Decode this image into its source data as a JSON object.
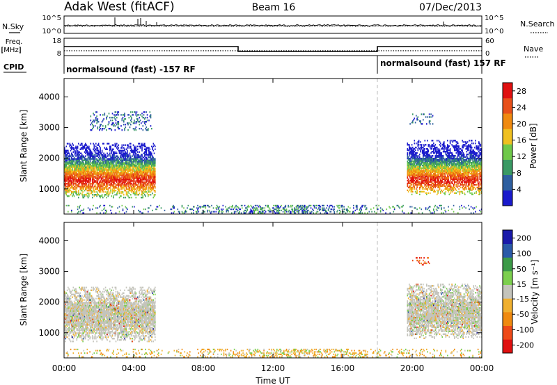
{
  "header": {
    "site": "Adak West (fitACF)",
    "beam": "Beam 16",
    "date": "07/Dec/2013"
  },
  "noise_panel": {
    "left_label": "N.Sky",
    "right_label": "N.Search",
    "left_ticks": [
      "10^5",
      "10^0"
    ],
    "right_ticks": [
      "10^5",
      "10^0"
    ]
  },
  "freq_panel": {
    "left_label_line1": "Freq.",
    "left_label_line2": "[MHz]",
    "left_ticks": [
      "18",
      "8"
    ],
    "right_label": "Nave",
    "right_ticks": [
      "60",
      "0"
    ]
  },
  "cpid_panel": {
    "label": "CPID",
    "segments": [
      {
        "start_hour": 0,
        "text": "normalsound (fast) -157 RF"
      },
      {
        "start_hour": 18,
        "text": "normalsound (fast) 157 RF"
      }
    ]
  },
  "colors": {
    "power": [
      "#1a1acc",
      "#2e5fa0",
      "#3a9a64",
      "#6fc94a",
      "#f0c020",
      "#f08a10",
      "#e8501a",
      "#e01010"
    ],
    "velocity": [
      "#e01010",
      "#ee4a18",
      "#f08a10",
      "#f0b030",
      "#c4c4bc",
      "#7ccf4e",
      "#3c9a48",
      "#2a5aa8",
      "#1a1aaa"
    ],
    "vel_tick_positions": [
      0.065,
      0.19,
      0.315,
      0.44,
      0.56,
      0.685,
      0.81,
      0.935
    ]
  },
  "chart_data": [
    {
      "type": "heatmap",
      "panel": "power",
      "xlabel": "",
      "ylabel": "Slant Range [km]",
      "xlim": [
        0,
        24
      ],
      "ylim": [
        180,
        4600
      ],
      "yticks": [
        1000,
        2000,
        3000,
        4000
      ],
      "colorbar": {
        "label": "Power [dB]",
        "ticks": [
          "4",
          "8",
          "12",
          "16",
          "20",
          "24",
          "28"
        ],
        "range": [
          0,
          30
        ]
      },
      "echo_regions": [
        {
          "t0": 0.0,
          "t1": 5.2,
          "r0": 700,
          "r1": 2500,
          "level": "strong"
        },
        {
          "t0": 19.7,
          "t1": 24.0,
          "r0": 800,
          "r1": 2600,
          "level": "strong"
        },
        {
          "t0": 1.5,
          "t1": 5.0,
          "r0": 2900,
          "r1": 3500,
          "level": "sparse"
        },
        {
          "t0": 19.8,
          "t1": 21.2,
          "r0": 3100,
          "r1": 3450,
          "level": "sparse"
        },
        {
          "t0": 0.0,
          "t1": 24.0,
          "r0": 200,
          "r1": 450,
          "level": "ground"
        }
      ]
    },
    {
      "type": "heatmap",
      "panel": "velocity",
      "xlabel": "Time UT",
      "ylabel": "Slant Range [km]",
      "xlim": [
        0,
        24
      ],
      "ylim": [
        180,
        4600
      ],
      "yticks": [
        1000,
        2000,
        3000,
        4000
      ],
      "xticks": [
        "00:00",
        "04:00",
        "08:00",
        "12:00",
        "16:00",
        "20:00",
        "00:00"
      ],
      "xtick_hours": [
        0,
        4,
        8,
        12,
        16,
        20,
        24
      ],
      "colorbar": {
        "label": "Velocity [m s⁻¹]",
        "ticks": [
          "200",
          "100",
          "50",
          "15",
          "-15",
          "-50",
          "-100",
          "-200"
        ]
      },
      "echo_regions": [
        {
          "t0": 0.0,
          "t1": 5.2,
          "r0": 700,
          "r1": 2500,
          "level": "low-velocity"
        },
        {
          "t0": 19.7,
          "t1": 24.0,
          "r0": 800,
          "r1": 2600,
          "level": "low-velocity"
        },
        {
          "t0": 20.0,
          "t1": 21.0,
          "r0": 3200,
          "r1": 3450,
          "level": "negative"
        },
        {
          "t0": 0.0,
          "t1": 24.0,
          "r0": 200,
          "r1": 450,
          "level": "ground"
        }
      ]
    }
  ]
}
